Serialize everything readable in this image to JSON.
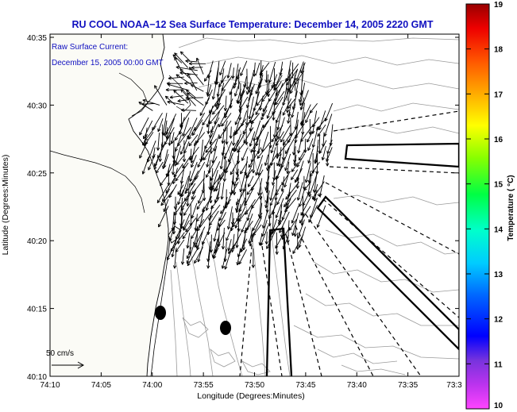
{
  "title": "RU COOL  NOAA−12  Sea Surface Temperature:  December 14, 2005 2220 GMT",
  "annotation": {
    "line1": "Raw Surface Current:",
    "line2": "December 15, 2005 00:00 GMT"
  },
  "scale_label": "50 cm/s",
  "axes": {
    "xlabel": "Longitude (Degrees:Minutes)",
    "ylabel": "Latitude (Degrees:Minutes)",
    "x_ticks": [
      "74:10",
      "74:05",
      "74:00",
      "73:55",
      "73:50",
      "73:45",
      "73:40",
      "73:35",
      "73:3"
    ],
    "y_ticks": [
      "40:35",
      "40:30",
      "40:25",
      "40:20",
      "40:15",
      "40:10"
    ]
  },
  "colorbar": {
    "label": "Temperature ( °C)",
    "min": 10,
    "max": 19,
    "ticks": [
      "19",
      "18",
      "17",
      "16",
      "15",
      "14",
      "13",
      "12",
      "11",
      "10"
    ]
  },
  "colors": {
    "title": "#1010c0",
    "land": "#fbfbf6",
    "coast": "#000000",
    "bathy": "#9a9a9a"
  }
}
